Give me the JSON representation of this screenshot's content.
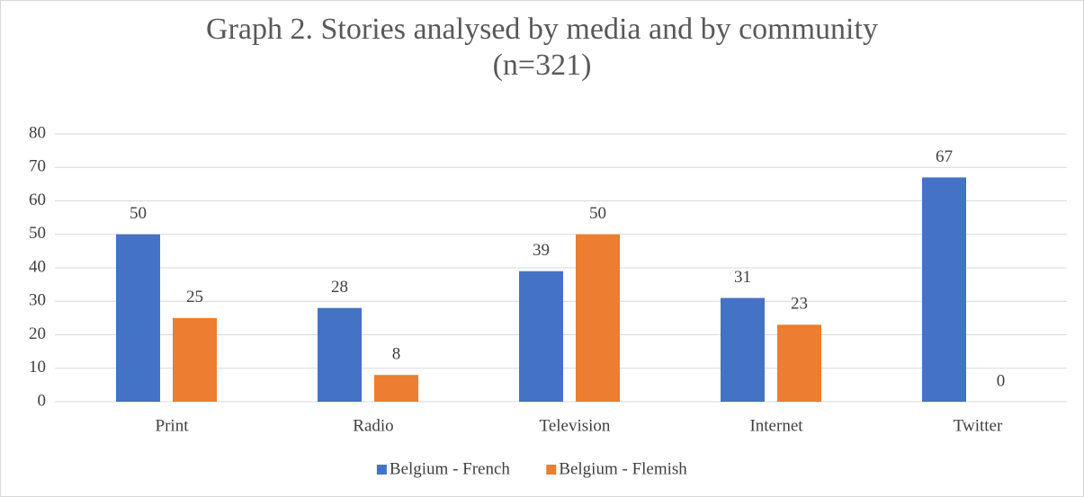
{
  "chart_data": {
    "type": "bar",
    "title": "Graph 2. Stories analysed by media and by community (n=321)",
    "categories": [
      "Print",
      "Radio",
      "Television",
      "Internet",
      "Twitter"
    ],
    "series": [
      {
        "name": "Belgium - French",
        "color": "#4472c4",
        "values": [
          50,
          28,
          39,
          31,
          67
        ]
      },
      {
        "name": "Belgium - Flemish",
        "color": "#ed7d31",
        "values": [
          25,
          8,
          50,
          23,
          0
        ]
      }
    ],
    "ylim": [
      0,
      80
    ],
    "yticks": [
      0,
      10,
      20,
      30,
      40,
      50,
      60,
      70,
      80
    ],
    "grid": true,
    "legend": "bottom"
  }
}
